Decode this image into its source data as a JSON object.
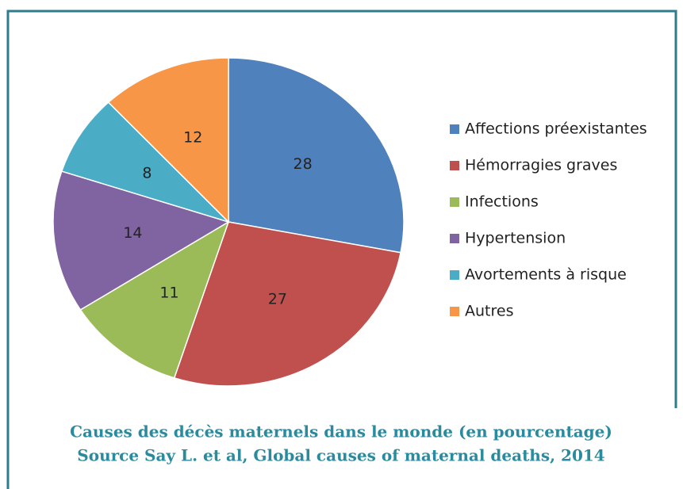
{
  "chart_data": {
    "type": "pie",
    "title": "Causes des décès maternels dans le monde (en pourcentage)",
    "subtitle": "Source Say L. et al, Global causes of maternal deaths, 2014",
    "categories": [
      "Affections préexistantes",
      "Hémorragies graves",
      "Infections",
      "Hypertension",
      "Avortements à risque",
      "Autres"
    ],
    "values": [
      28,
      27,
      11,
      14,
      8,
      12
    ],
    "colors": [
      "#4f81bd",
      "#c0504d",
      "#9bbb59",
      "#8064a2",
      "#4bacc6",
      "#f79646"
    ],
    "legend": "right"
  }
}
